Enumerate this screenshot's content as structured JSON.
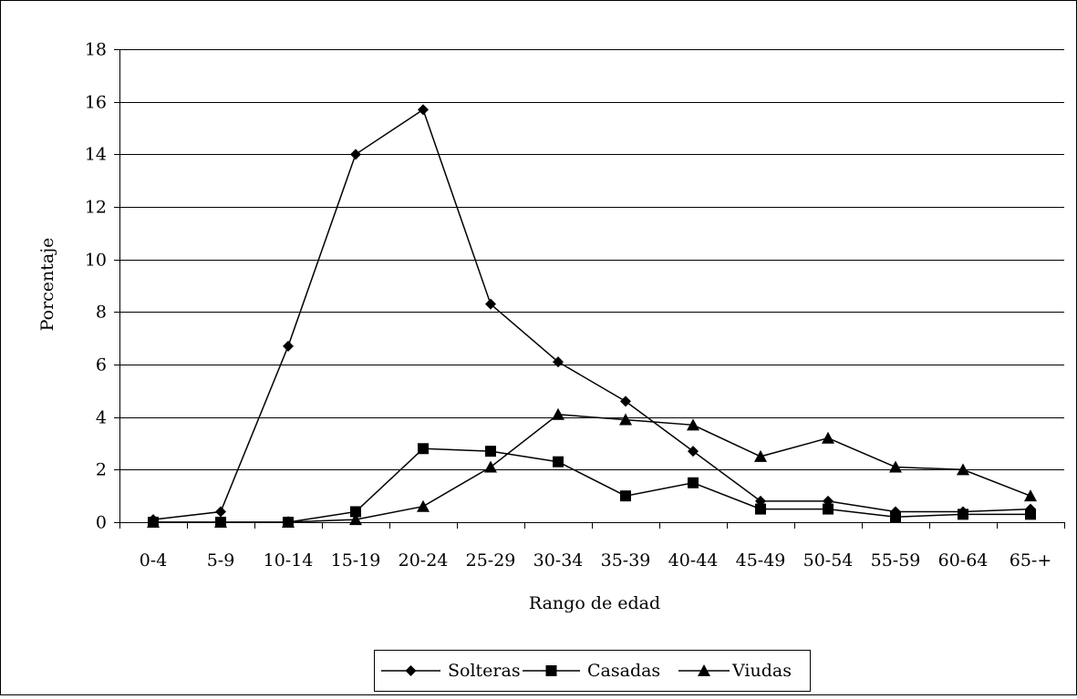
{
  "chart_data": {
    "type": "line",
    "categories": [
      "0-4",
      "5-9",
      "10-14",
      "15-19",
      "20-24",
      "25-29",
      "30-34",
      "35-39",
      "40-44",
      "45-49",
      "50-54",
      "55-59",
      "60-64",
      "65-+"
    ],
    "series": [
      {
        "name": "Solteras",
        "marker": "diamond",
        "values": [
          0.1,
          0.4,
          6.7,
          14.0,
          15.7,
          8.3,
          6.1,
          4.6,
          2.7,
          0.8,
          0.8,
          0.4,
          0.4,
          0.5
        ]
      },
      {
        "name": "Casadas",
        "marker": "square",
        "values": [
          0.0,
          0.0,
          0.0,
          0.4,
          2.8,
          2.7,
          2.3,
          1.0,
          1.5,
          0.5,
          0.5,
          0.2,
          0.3,
          0.3
        ]
      },
      {
        "name": "Viudas",
        "marker": "triangle",
        "values": [
          0.0,
          0.0,
          0.0,
          0.1,
          0.6,
          2.1,
          4.1,
          3.9,
          3.7,
          2.5,
          3.2,
          2.1,
          2.0,
          1.0
        ]
      }
    ],
    "xlabel": "Rango de edad",
    "ylabel": "Porcentaje",
    "ylim": [
      0,
      18
    ],
    "yticks": [
      0,
      2,
      4,
      6,
      8,
      10,
      12,
      14,
      16,
      18
    ],
    "grid": "horizontal",
    "legend": "bottom",
    "colors": {
      "line": "#000000",
      "grid": "#000000",
      "background": "#ffffff"
    }
  }
}
